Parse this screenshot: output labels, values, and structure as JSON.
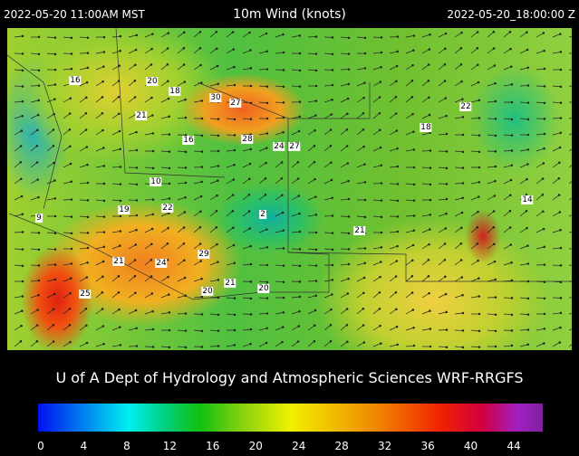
{
  "header": {
    "left": "2022-05-20 11:00AM MST",
    "title": "10m Wind (knots)",
    "right": "2022-05-20_18:00:00 Z"
  },
  "stations": [
    16,
    20,
    18,
    30,
    27,
    21,
    22,
    18,
    16,
    28,
    24,
    27,
    10,
    14,
    22,
    19,
    2,
    9,
    21,
    29,
    21,
    24,
    21,
    20,
    20,
    25
  ],
  "footer": "U of A Dept of Hydrology and Atmospheric Sciences WRF-RRGFS",
  "colorbar": {
    "ticks": [
      0,
      4,
      8,
      12,
      16,
      20,
      24,
      28,
      32,
      36,
      40,
      44
    ]
  }
}
